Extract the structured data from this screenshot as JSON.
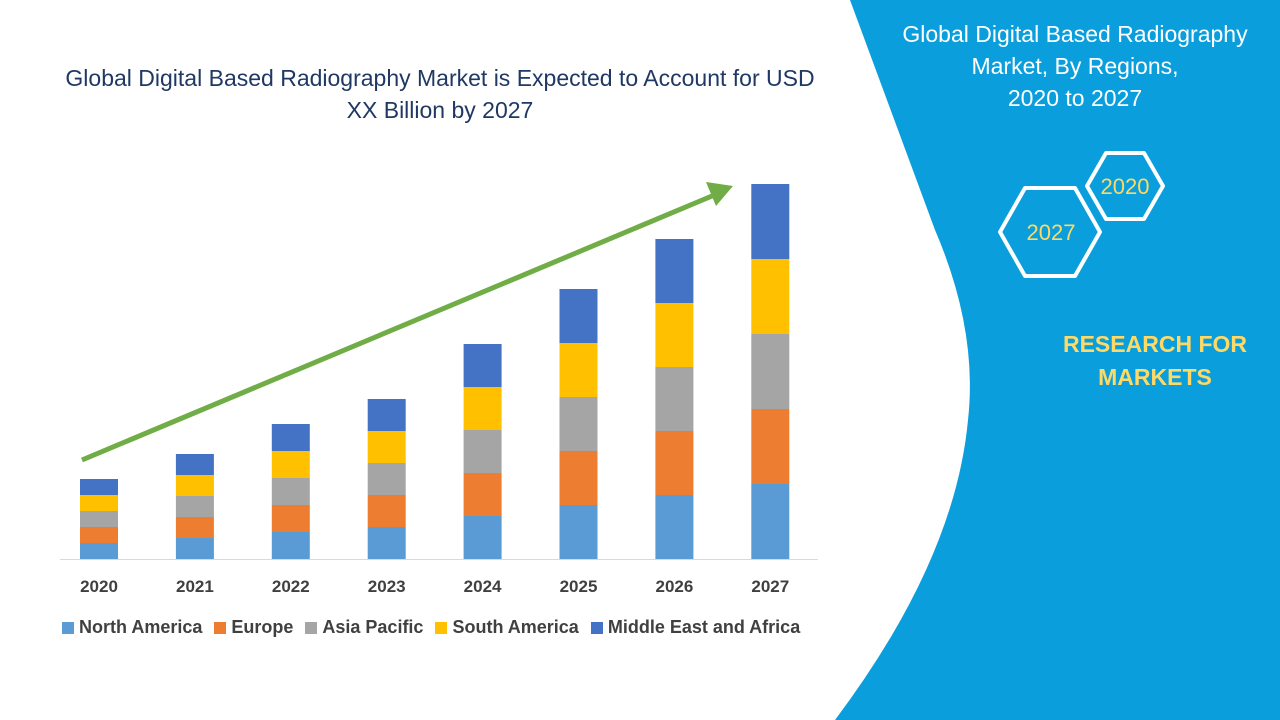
{
  "title": "Global Digital Based Radiography Market is Expected to Account for USD XX Billion by 2027",
  "panel": {
    "title_lines": [
      "Global Digital Based Radiography",
      "Market, By Regions,",
      "2020 to 2027"
    ],
    "hex_2020": "2020",
    "hex_2027": "2027",
    "brand_lines": [
      "RESEARCH FOR",
      "MARKETS"
    ],
    "background_color": "#0a9fdc",
    "brand_color": "#ffd966"
  },
  "chart_data": {
    "type": "bar",
    "stacked": true,
    "title": "Global Digital Based Radiography Market is Expected to Account for USD XX Billion by 2027",
    "xlabel": "",
    "ylabel": "",
    "y_axis_shown": false,
    "grid": false,
    "legend_position": "bottom",
    "trend_arrow": true,
    "trend_arrow_color": "#70ad47",
    "categories": [
      "2020",
      "2021",
      "2022",
      "2023",
      "2024",
      "2025",
      "2026",
      "2027"
    ],
    "series": [
      {
        "name": "North America",
        "color": "#5b9bd5",
        "values": [
          16,
          21,
          27,
          32,
          43,
          54,
          64,
          75
        ]
      },
      {
        "name": "Europe",
        "color": "#ed7d31",
        "values": [
          16,
          21,
          27,
          32,
          43,
          54,
          64,
          75
        ]
      },
      {
        "name": "Asia Pacific",
        "color": "#a5a5a5",
        "values": [
          16,
          21,
          27,
          32,
          43,
          54,
          64,
          75
        ]
      },
      {
        "name": "South America",
        "color": "#ffc000",
        "values": [
          16,
          21,
          27,
          32,
          43,
          54,
          64,
          75
        ]
      },
      {
        "name": "Middle East and Africa",
        "color": "#4472c4",
        "values": [
          16,
          21,
          27,
          32,
          43,
          54,
          64,
          75
        ]
      }
    ]
  }
}
